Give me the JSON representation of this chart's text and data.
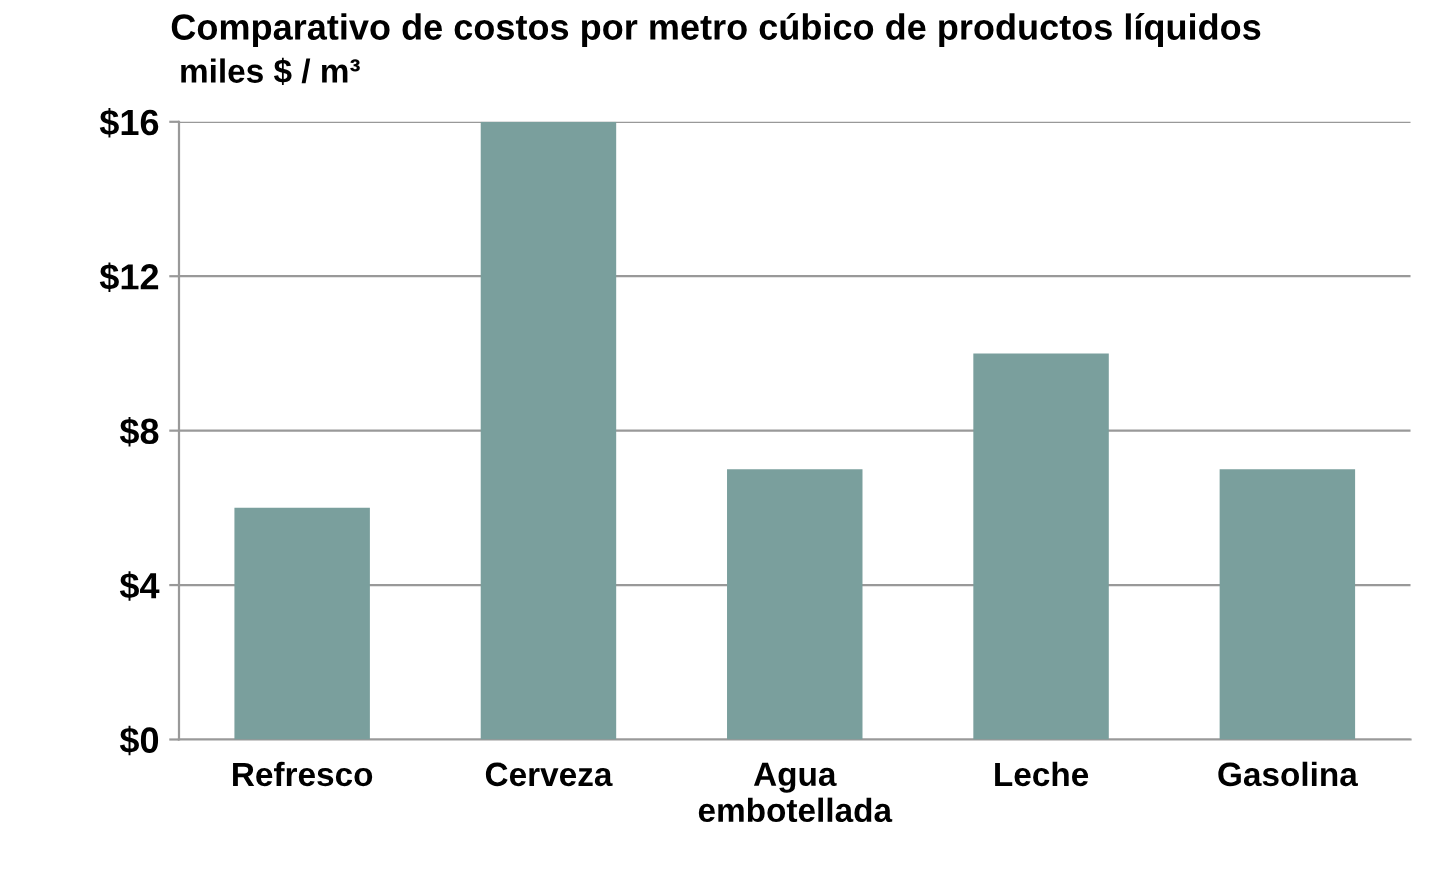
{
  "chart_data": {
    "type": "bar",
    "title": "Comparativo de costos por metro cúbico de productos líquidos",
    "ylabel": "miles $ / m³",
    "categories": [
      "Refresco",
      "Cerveza",
      "Agua\nembotellada",
      "Leche",
      "Gasolina"
    ],
    "values": [
      6,
      16,
      7,
      10,
      7
    ],
    "color": "#7a9f9d",
    "ylim": [
      0,
      16
    ],
    "yticks": [
      {
        "value": 0,
        "label": "$0"
      },
      {
        "value": 4,
        "label": "$4"
      },
      {
        "value": 8,
        "label": "$8"
      },
      {
        "value": 12,
        "label": "$12"
      },
      {
        "value": 16,
        "label": "$16"
      }
    ],
    "grid": "y"
  }
}
